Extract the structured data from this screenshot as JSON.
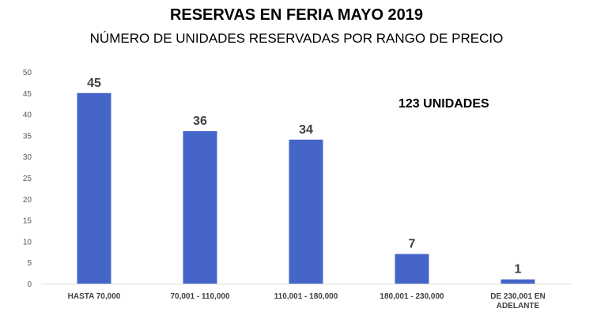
{
  "chart_data": {
    "type": "bar",
    "title": "RESERVAS EN FERIA MAYO 2019",
    "subtitle": "NÚMERO DE UNIDADES RESERVADAS POR RANGO DE PRECIO",
    "annotation": "123 UNIDADES",
    "categories": [
      [
        "HASTA 70,000"
      ],
      [
        "70,001 - 110,000"
      ],
      [
        "110,001 - 180,000"
      ],
      [
        "180,001 - 230,000"
      ],
      [
        "DE 230,001 EN",
        "ADELANTE"
      ]
    ],
    "values": [
      45,
      36,
      34,
      7,
      1
    ],
    "ylim": [
      0,
      50
    ],
    "yticks": [
      0,
      5,
      10,
      15,
      20,
      25,
      30,
      35,
      40,
      45,
      50
    ],
    "bar_color": "#4565C8",
    "grid": false,
    "legend": "none"
  }
}
